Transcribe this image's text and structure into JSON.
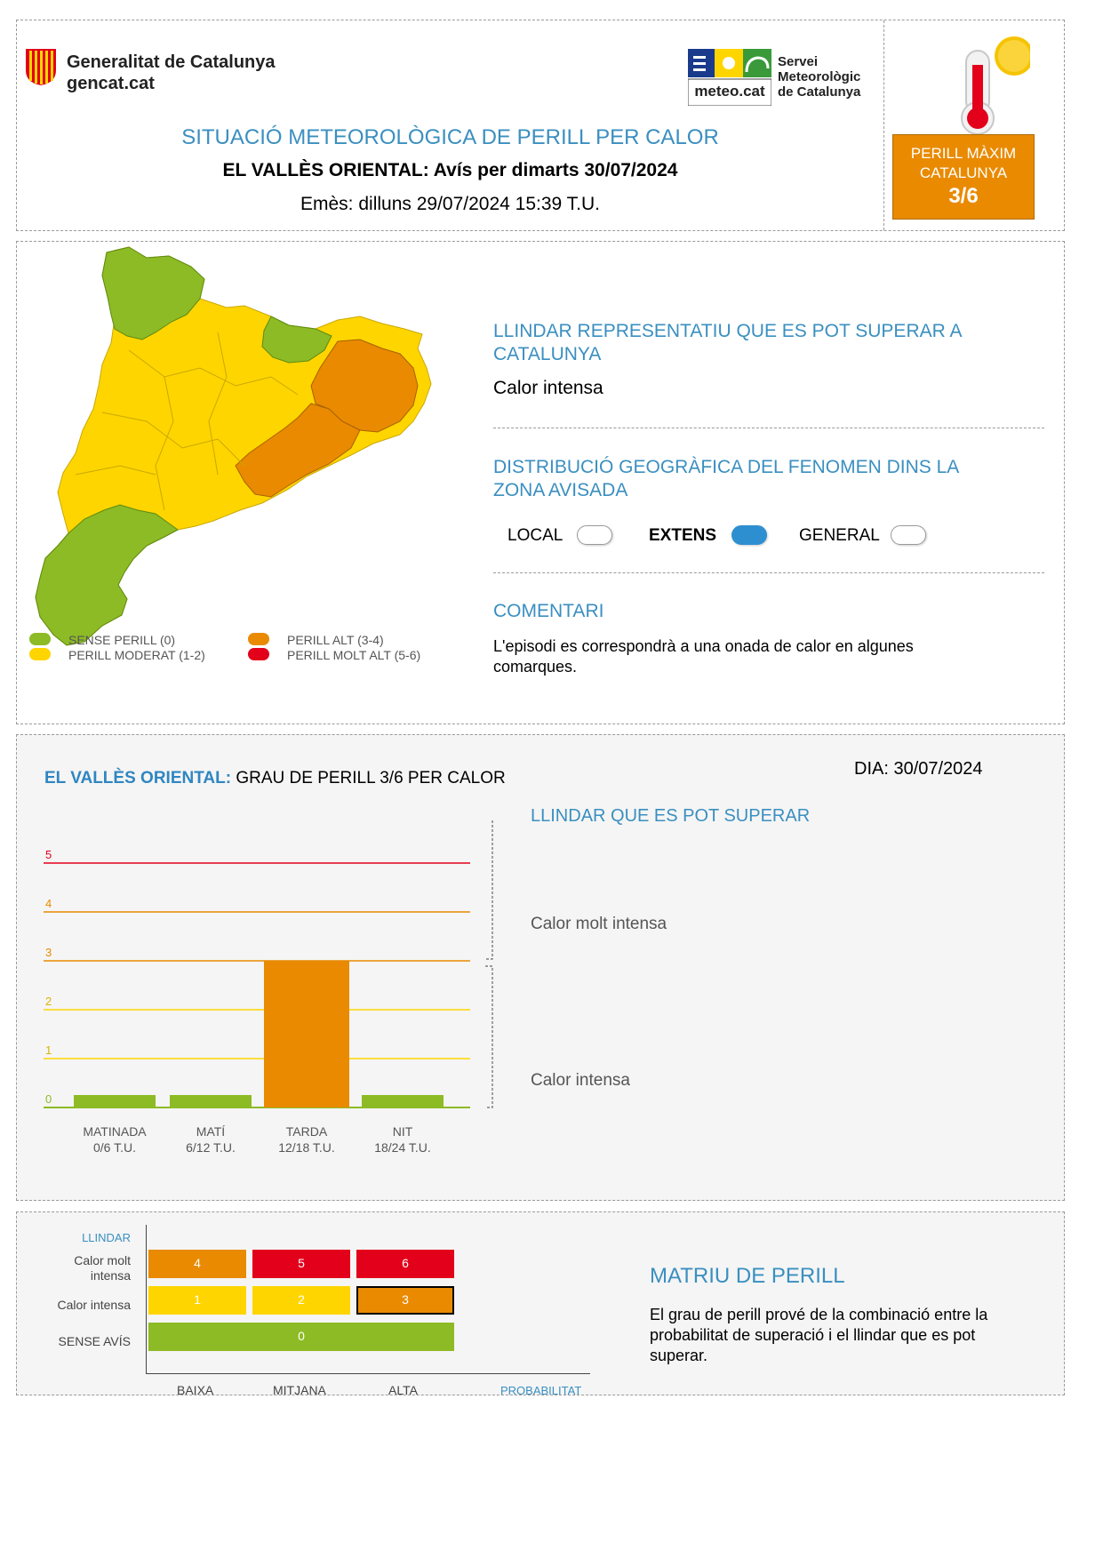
{
  "header": {
    "generalitat_name": "Generalitat de Catalunya",
    "generalitat_url": "gencat.cat",
    "meteo_logo_text": "meteo.cat",
    "meteo_service_name_1": "Servei",
    "meteo_service_name_2": "Meteorològic",
    "meteo_service_name_3": "de Catalunya",
    "title": "SITUACIÓ METEOROLÒGICA DE PERILL PER CALOR",
    "zone": "EL VALLÈS ORIENTAL:",
    "warning_for": "Avís per dimarts 30/07/2024",
    "issued": "Emès: dilluns 29/07/2024 15:39 T.U.",
    "max_label_1": "PERILL MÀXIM",
    "max_label_2": "CATALUNYA",
    "max_value": "3/6"
  },
  "map": {
    "legend": [
      {
        "label": "SENSE PERILL (0)",
        "color": "#8dbb25"
      },
      {
        "label": "PERILL MODERAT (1-2)",
        "color": "#ffd500"
      },
      {
        "label": "PERILL ALT (3-4)",
        "color": "#e98a00"
      },
      {
        "label": "PERILL MOLT ALT (5-6)",
        "color": "#e2001a"
      }
    ]
  },
  "info": {
    "threshold_title": "LLINDAR REPRESENTATIU QUE ES POT SUPERAR A CATALUNYA",
    "threshold_value": "Calor intensa",
    "distribution_title": "DISTRIBUCIÓ GEOGRÀFICA DEL FENOMEN DINS LA ZONA AVISADA",
    "distribution_options": [
      {
        "label": "LOCAL",
        "selected": false
      },
      {
        "label": "EXTENS",
        "selected": true
      },
      {
        "label": "GENERAL",
        "selected": false
      }
    ],
    "comment_title": "COMENTARI",
    "comment_text": "L'episodi es correspondrà a una onada de calor en algunes comarques."
  },
  "bar_section": {
    "zone": "EL VALLÈS ORIENTAL:",
    "degree_text": "GRAU DE PERILL 3/6 PER CALOR",
    "day": "DIA: 30/07/2024",
    "threshold_header": "LLINDAR QUE ES POT SUPERAR",
    "upper_threshold": "Calor molt intensa",
    "lower_threshold": "Calor intensa"
  },
  "chart_data": {
    "type": "bar",
    "categories": [
      "MATINADA",
      "MATÍ",
      "TARDA",
      "NIT"
    ],
    "category_sublabels": [
      "0/6 T.U.",
      "6/12 T.U.",
      "12/18 T.U.",
      "18/24 T.U."
    ],
    "values": [
      0,
      0,
      3,
      0
    ],
    "bar_colors": [
      "#8dbb25",
      "#8dbb25",
      "#e98a00",
      "#8dbb25"
    ],
    "ylim": [
      0,
      6
    ],
    "yticks": [
      "0",
      "1",
      "2",
      "3",
      "4",
      "5",
      "6"
    ],
    "line_colors": [
      "#8dbb25",
      "#ffd500",
      "#ffd500",
      "#e98a00",
      "#e98a00",
      "#e2001a",
      "#e2001a"
    ]
  },
  "matrix": {
    "axis_y": "LLINDAR",
    "axis_x": "PROBABILITAT",
    "rows": [
      {
        "label": "Calor molt intensa",
        "cells": [
          "4",
          "5",
          "6"
        ],
        "colors": [
          "#e98a00",
          "#e2001a",
          "#e2001a"
        ]
      },
      {
        "label": "Calor intensa",
        "cells": [
          "1",
          "2",
          "3"
        ],
        "colors": [
          "#ffd500",
          "#ffd500",
          "#e98a00"
        ]
      },
      {
        "label": "SENSE AVÍS",
        "cells": [
          "0"
        ],
        "colors": [
          "#8dbb25"
        ]
      }
    ],
    "cols": [
      "BAIXA",
      "MITJANA",
      "ALTA"
    ],
    "highlighted": "3",
    "title": "MATRIU DE PERILL",
    "description": "El grau de perill prové de la combinació entre la probabilitat de superació i el llindar que es pot superar."
  }
}
